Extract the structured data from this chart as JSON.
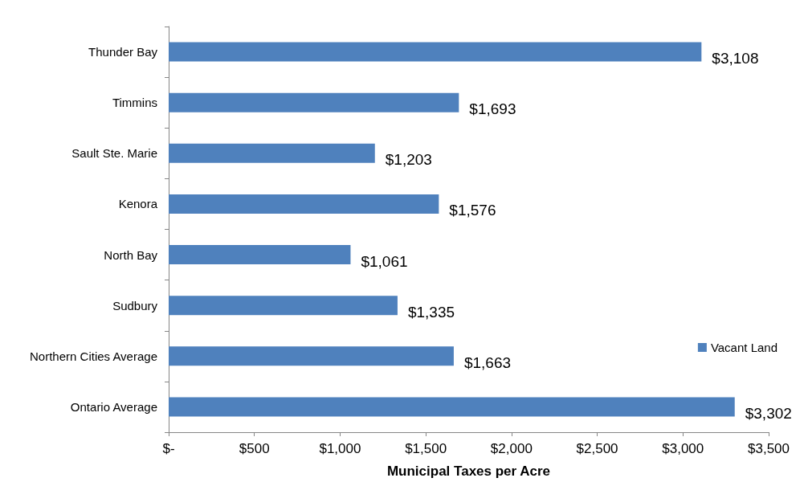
{
  "chart_data": {
    "type": "bar",
    "orientation": "horizontal",
    "xlabel": "Municipal Taxes per Acre",
    "categories": [
      "Thunder Bay",
      "Timmins",
      "Sault Ste. Marie",
      "Kenora",
      "North Bay",
      "Sudbury",
      "Northern Cities Average",
      "Ontario Average"
    ],
    "series": [
      {
        "name": "Vacant Land",
        "color": "#4f81bd",
        "values": [
          3108,
          1693,
          1203,
          1576,
          1061,
          1335,
          1663,
          3302
        ],
        "value_labels": [
          "$3,108",
          "$1,693",
          "$1,203",
          "$1,576",
          "$1,061",
          "$1,335",
          "$1,663",
          "$3,302"
        ]
      }
    ],
    "xlim": [
      0,
      3500
    ],
    "xticks": [
      {
        "value": 0,
        "label": "$-"
      },
      {
        "value": 500,
        "label": "$500"
      },
      {
        "value": 1000,
        "label": "$1,000"
      },
      {
        "value": 1500,
        "label": "$1,500"
      },
      {
        "value": 2000,
        "label": "$2,000"
      },
      {
        "value": 2500,
        "label": "$2,500"
      },
      {
        "value": 3000,
        "label": "$3,000"
      },
      {
        "value": 3500,
        "label": "$3,500"
      }
    ],
    "legend": "bottom right"
  }
}
